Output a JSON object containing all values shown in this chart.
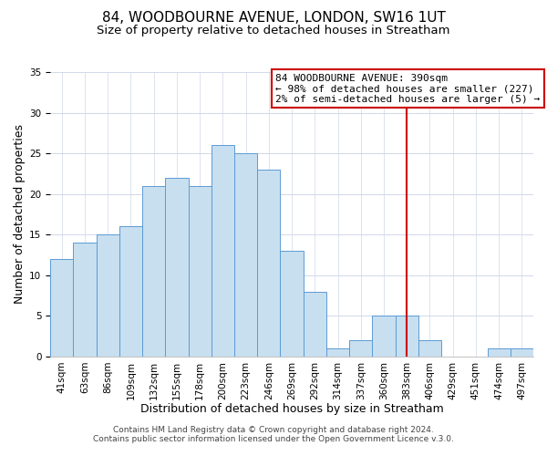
{
  "title": "84, WOODBOURNE AVENUE, LONDON, SW16 1UT",
  "subtitle": "Size of property relative to detached houses in Streatham",
  "xlabel": "Distribution of detached houses by size in Streatham",
  "ylabel": "Number of detached properties",
  "bar_labels": [
    "41sqm",
    "63sqm",
    "86sqm",
    "109sqm",
    "132sqm",
    "155sqm",
    "178sqm",
    "200sqm",
    "223sqm",
    "246sqm",
    "269sqm",
    "292sqm",
    "314sqm",
    "337sqm",
    "360sqm",
    "383sqm",
    "406sqm",
    "429sqm",
    "451sqm",
    "474sqm",
    "497sqm"
  ],
  "bar_heights": [
    12,
    14,
    15,
    16,
    21,
    22,
    21,
    26,
    25,
    23,
    13,
    8,
    1,
    2,
    5,
    5,
    2,
    0,
    0,
    1,
    1
  ],
  "bar_color": "#c8dff0",
  "bar_edge_color": "#5b9bd5",
  "vline_x_label": "383sqm",
  "vline_color": "#cc0000",
  "ylim": [
    0,
    35
  ],
  "annotation_title": "84 WOODBOURNE AVENUE: 390sqm",
  "annotation_line1": "← 98% of detached houses are smaller (227)",
  "annotation_line2": "2% of semi-detached houses are larger (5) →",
  "footer_line1": "Contains HM Land Registry data © Crown copyright and database right 2024.",
  "footer_line2": "Contains public sector information licensed under the Open Government Licence v.3.0.",
  "title_fontsize": 11,
  "subtitle_fontsize": 9.5,
  "xlabel_fontsize": 9,
  "ylabel_fontsize": 9,
  "tick_fontsize": 7.5,
  "ann_fontsize": 8,
  "footer_fontsize": 6.5
}
